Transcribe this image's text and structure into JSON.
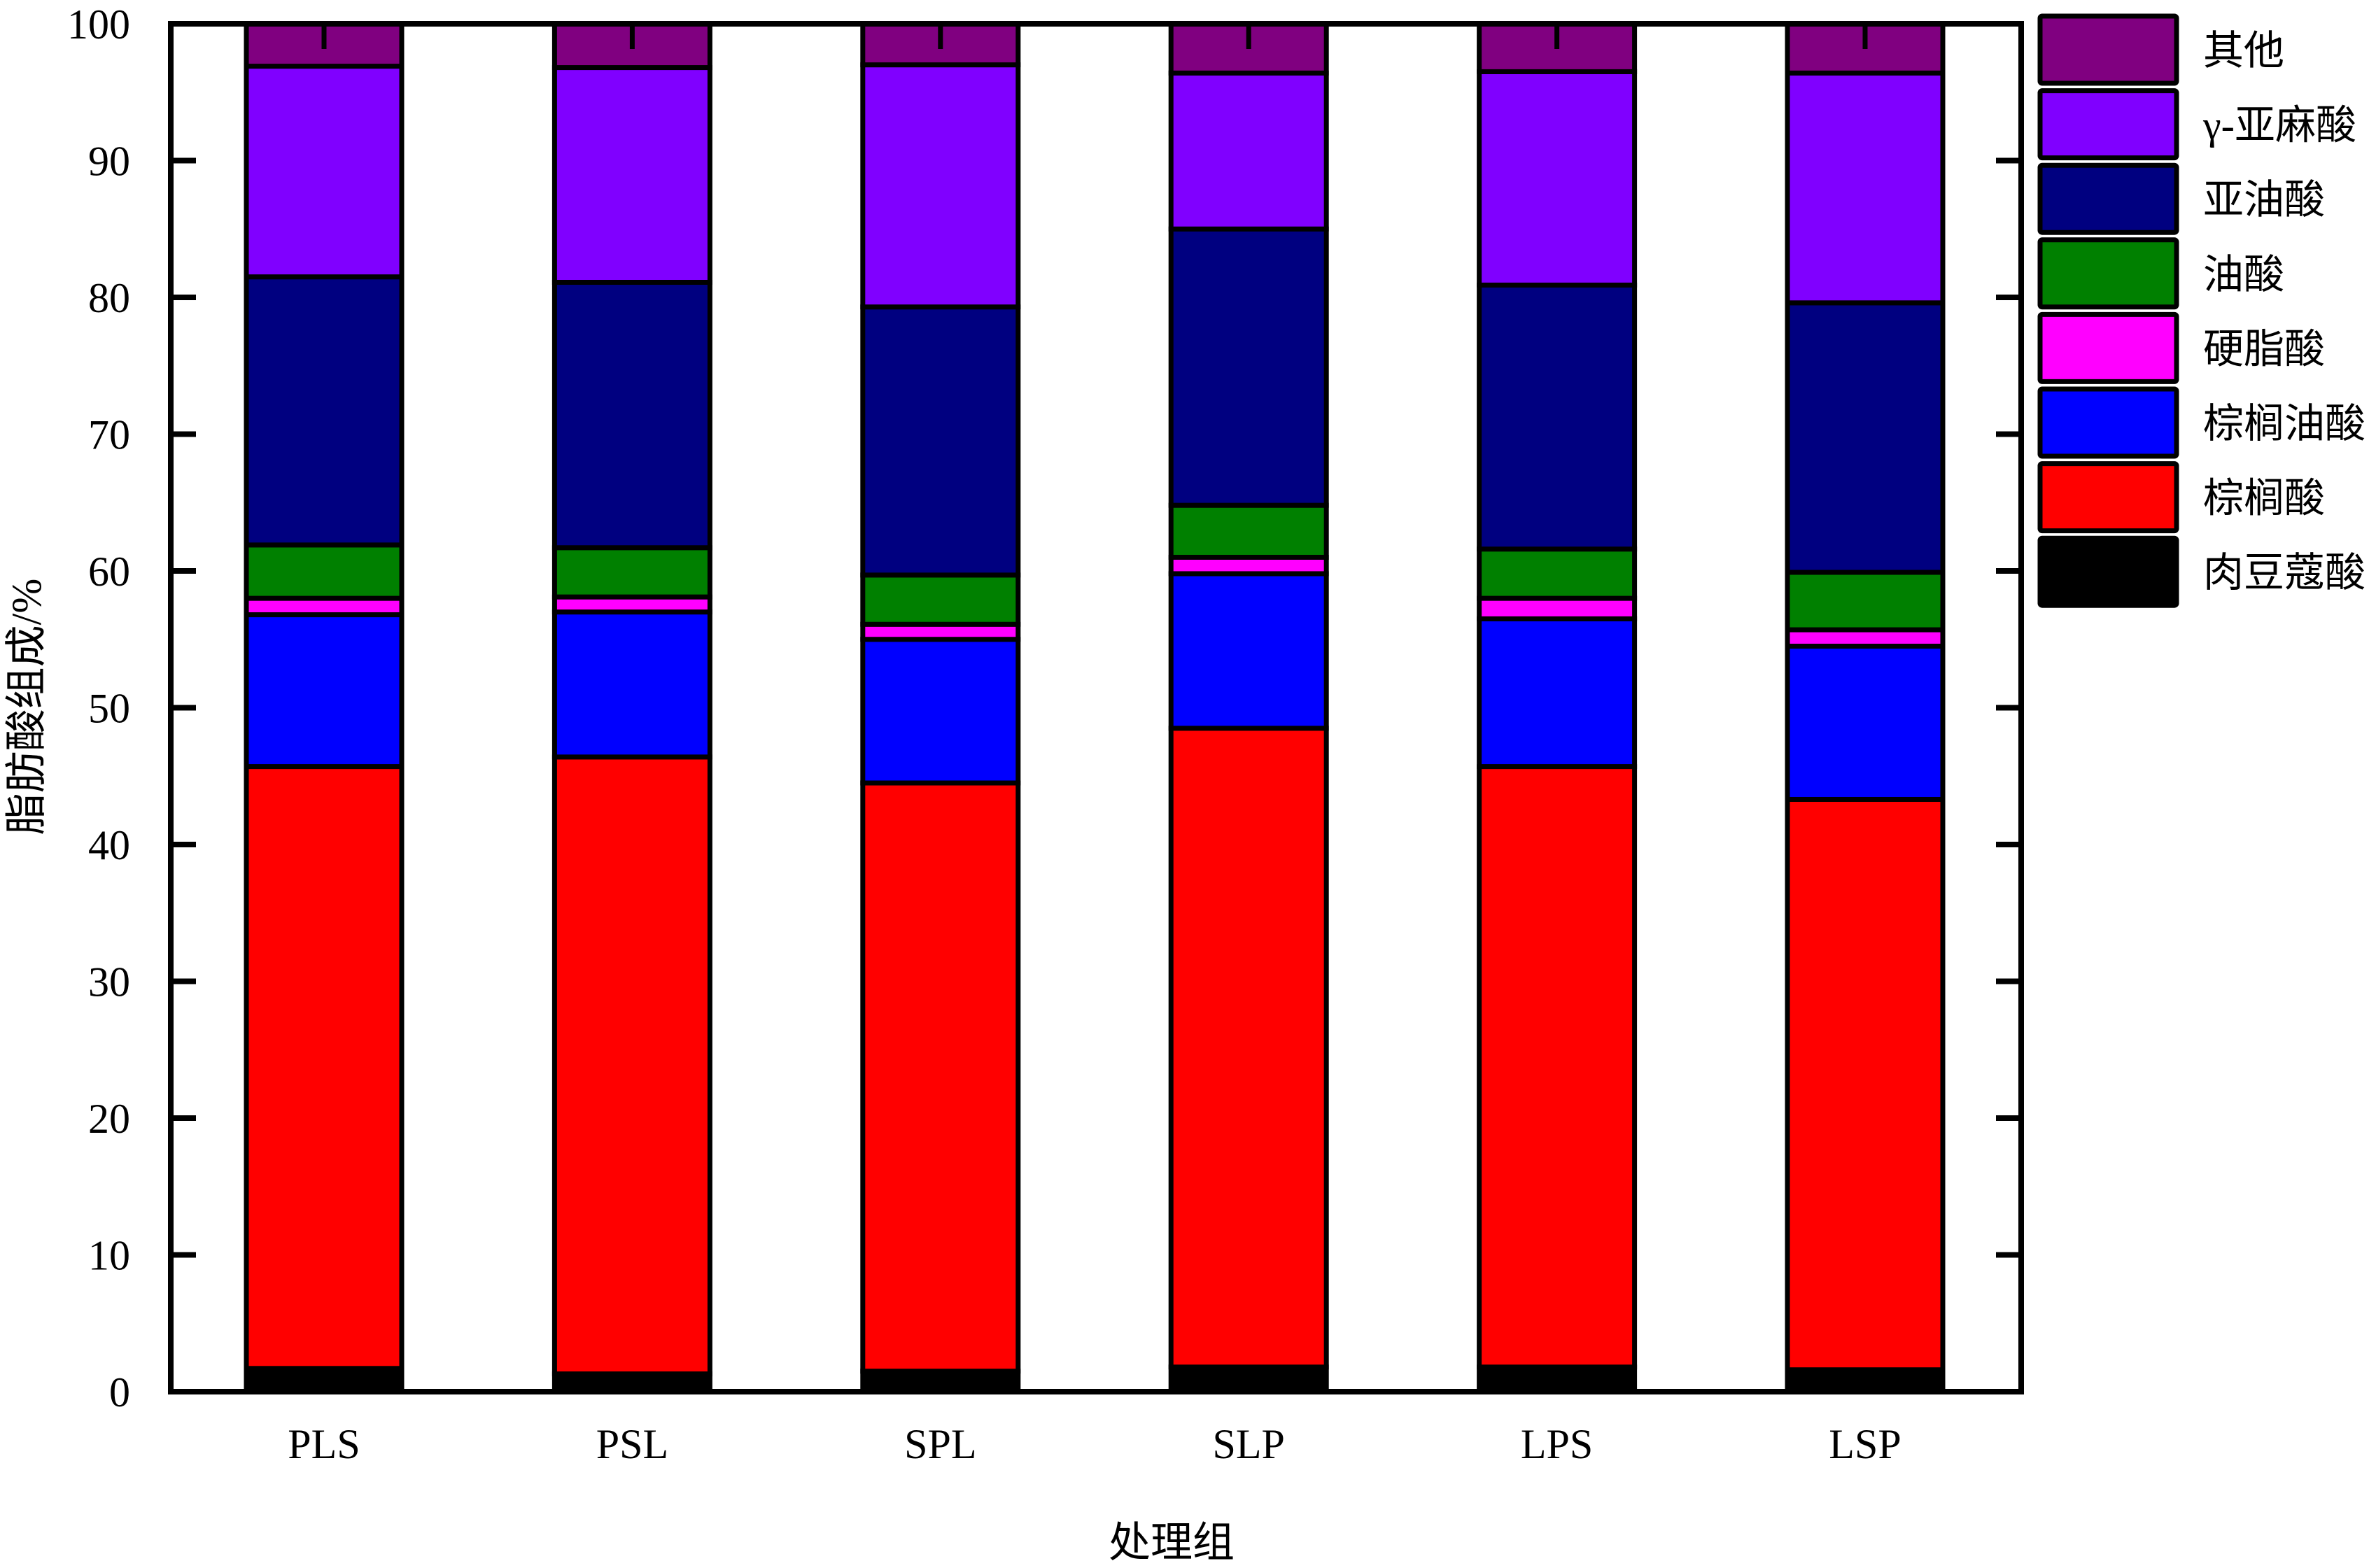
{
  "chart_data": {
    "type": "bar",
    "stacked": true,
    "title": "",
    "xlabel": "处理组",
    "ylabel": "脂肪酸组成/%",
    "ylim": [
      0,
      100
    ],
    "yticks": [
      0,
      10,
      20,
      30,
      40,
      50,
      60,
      70,
      80,
      90,
      100
    ],
    "grid": false,
    "legend_position": "right",
    "categories": [
      "PLS",
      "PSL",
      "SPL",
      "SLP",
      "LPS",
      "LSP"
    ],
    "series": [
      {
        "name": "肉豆蔻酸",
        "color": "#000000",
        "values": [
          1.7,
          1.3,
          1.5,
          1.8,
          1.8,
          1.6
        ]
      },
      {
        "name": "棕榈酸",
        "color": "#ff0000",
        "values": [
          44.0,
          45.1,
          43.0,
          46.7,
          43.9,
          41.7
        ]
      },
      {
        "name": "棕榈油酸",
        "color": "#0000ff",
        "values": [
          11.1,
          10.6,
          10.5,
          11.3,
          10.8,
          11.2
        ]
      },
      {
        "name": "硬脂酸",
        "color": "#ff00ff",
        "values": [
          1.2,
          1.1,
          1.1,
          1.2,
          1.5,
          1.2
        ]
      },
      {
        "name": "油酸",
        "color": "#008000",
        "values": [
          3.9,
          3.6,
          3.6,
          3.8,
          3.6,
          4.2
        ]
      },
      {
        "name": "亚油酸",
        "color": "#000080",
        "values": [
          19.6,
          19.4,
          19.6,
          20.2,
          19.3,
          19.7
        ]
      },
      {
        "name": "γ-亚麻酸",
        "color": "#8000ff",
        "values": [
          15.4,
          15.7,
          17.7,
          11.4,
          15.6,
          16.8
        ]
      },
      {
        "name": "其他",
        "color": "#800080",
        "values": [
          3.1,
          3.2,
          3.0,
          3.6,
          3.5,
          3.6
        ]
      }
    ]
  }
}
